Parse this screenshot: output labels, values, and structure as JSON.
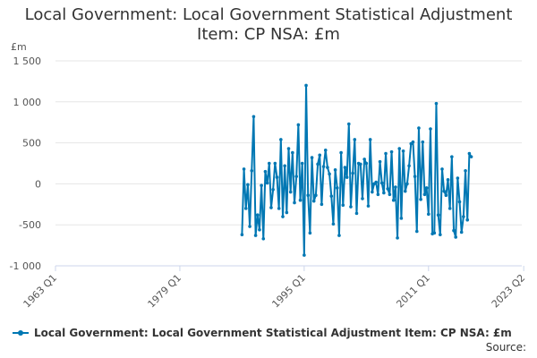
{
  "chart_data": {
    "type": "line",
    "title_line1": "Local Government: Local Government Statistical Adjustment",
    "title_line2": "Item: CP NSA: £m",
    "ylabel": "£m",
    "ylim": [
      -1000,
      1500
    ],
    "yticks": [
      -1000,
      -500,
      0,
      500,
      1000,
      1500
    ],
    "ytick_labels": [
      "-1 000",
      "-500",
      "0",
      "500",
      "1 000",
      "1 500"
    ],
    "xlim_index": [
      0,
      240
    ],
    "xticks": [
      {
        "label": "1963 Q1",
        "index": 0
      },
      {
        "label": "1979 Q1",
        "index": 64
      },
      {
        "label": "1995 Q1",
        "index": 128
      },
      {
        "label": "2011 Q1",
        "index": 192
      },
      {
        "label": "2023 Q2",
        "index": 241
      }
    ],
    "series": [
      {
        "name": "Local Government: Local Government Statistical Adjustment Item: CP NSA: £m",
        "color": "#0077b3",
        "start_index": 96,
        "values": [
          -620,
          180,
          -300,
          -10,
          -520,
          160,
          820,
          -630,
          -380,
          -560,
          -20,
          -670,
          150,
          10,
          250,
          -290,
          -70,
          250,
          80,
          -300,
          540,
          -400,
          220,
          -350,
          430,
          -100,
          380,
          -230,
          90,
          720,
          -200,
          250,
          -870,
          1200,
          -140,
          -600,
          320,
          -210,
          -140,
          240,
          350,
          -250,
          210,
          410,
          200,
          120,
          -150,
          -490,
          170,
          -50,
          -630,
          380,
          -260,
          200,
          80,
          730,
          -280,
          130,
          540,
          -360,
          250,
          240,
          -180,
          300,
          250,
          -270,
          540,
          -100,
          0,
          20,
          -130,
          270,
          10,
          -110,
          370,
          -60,
          -130,
          390,
          -200,
          -40,
          -660,
          430,
          -420,
          400,
          -90,
          0,
          220,
          490,
          510,
          90,
          -580,
          680,
          -190,
          510,
          -130,
          -50,
          -370,
          670,
          -610,
          -600,
          980,
          -380,
          -620,
          180,
          -90,
          -140,
          50,
          -300,
          330,
          -570,
          -650,
          70,
          -220,
          -590,
          -400,
          160,
          -440,
          370,
          330
        ]
      }
    ],
    "legend": "Local Government: Local Government Statistical Adjustment Item: CP NSA: £m",
    "source_label": "Source:"
  }
}
